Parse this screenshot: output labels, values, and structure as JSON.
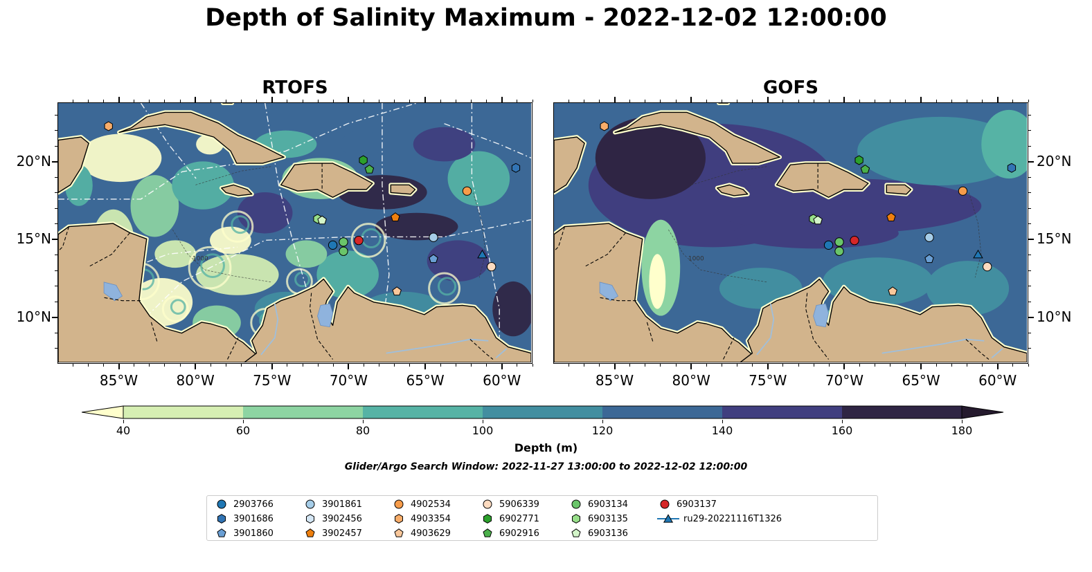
{
  "title": "Depth of Salinity Maximum - 2022-12-02 12:00:00",
  "panels": [
    {
      "name": "RTOFS",
      "style": "rtofs"
    },
    {
      "name": "GOFS",
      "style": "gofs"
    }
  ],
  "map": {
    "lon_range": [
      -89,
      -58
    ],
    "lat_range": [
      7,
      23.8
    ],
    "lon_ticks": [
      "85°W",
      "80°W",
      "75°W",
      "70°W",
      "65°W",
      "60°W"
    ],
    "lat_ticks": [
      "20°N",
      "15°N",
      "10°N"
    ],
    "contour_label": "1000",
    "land_color": "#d2b48c",
    "lake_color": "#8fb3dd"
  },
  "colorbar": {
    "label": "Depth (m)",
    "ticks": [
      "40",
      "60",
      "80",
      "100",
      "120",
      "140",
      "160",
      "180"
    ],
    "colors": [
      "#ffffcc",
      "#d6efb3",
      "#8dd4a2",
      "#56b3a5",
      "#428ea0",
      "#3c6896",
      "#403e7f",
      "#2f2544",
      "#251a2e"
    ]
  },
  "search_window": "Glider/Argo Search Window: 2022-11-27 13:00:00 to 2022-12-02 12:00:00",
  "legend": {
    "items": [
      {
        "label": "2903766",
        "marker": "circle",
        "color": "#1f77b4",
        "lon": null,
        "lat": null
      },
      {
        "label": "3901686",
        "marker": "hexagon",
        "color": "#3274b4",
        "lon": -59.0,
        "lat": 19.6
      },
      {
        "label": "3901860",
        "marker": "pentagon",
        "color": "#6a9fd4",
        "lon": -64.4,
        "lat": 13.7
      },
      {
        "label": "3901861",
        "marker": "circle",
        "color": "#a6cde8",
        "lon": -64.4,
        "lat": 15.1
      },
      {
        "label": "3902456",
        "marker": "hexagon",
        "color": "#d4e6f4",
        "lon": null,
        "lat": null
      },
      {
        "label": "3902457",
        "marker": "pentagon",
        "color": "#ee7f0e",
        "lon": -66.9,
        "lat": 16.4
      },
      {
        "label": "4902534",
        "marker": "circle",
        "color": "#f79c4a",
        "lon": -62.2,
        "lat": 18.1
      },
      {
        "label": "4903354",
        "marker": "hexagon",
        "color": "#f8ad6a",
        "lon": -85.7,
        "lat": 22.3
      },
      {
        "label": "4903629",
        "marker": "pentagon",
        "color": "#f9c79a",
        "lon": -66.8,
        "lat": 11.6
      },
      {
        "label": "5906339",
        "marker": "circle",
        "color": "#fddbc0",
        "lon": -60.6,
        "lat": 13.2
      },
      {
        "label": "6902771",
        "marker": "hexagon",
        "color": "#2ca02c",
        "lon": -69.0,
        "lat": 20.1
      },
      {
        "label": "6902916",
        "marker": "pentagon",
        "color": "#4bb04b",
        "lon": -68.6,
        "lat": 19.5
      },
      {
        "label": "6903134",
        "marker": "circle",
        "color": "#6ac56a",
        "lon": -70.3,
        "lat": 14.2
      },
      {
        "label": "6903135",
        "marker": "hexagon",
        "color": "#98df8a",
        "lon": -72.0,
        "lat": 16.3
      },
      {
        "label": "6903136",
        "marker": "pentagon",
        "color": "#d3f5c9",
        "lon": -71.7,
        "lat": 16.2
      },
      {
        "label": "6903137",
        "marker": "circle",
        "color": "#d62728",
        "lon": -69.3,
        "lat": 14.9
      },
      {
        "label": "ru29-20221116T1326",
        "marker": "triangle",
        "color": "#1f77b4",
        "lon": -61.2,
        "lat": 14.0
      }
    ],
    "extra_points": [
      {
        "label": "2903766",
        "lon": -71.0,
        "lat": 14.6
      },
      {
        "label": "6903134",
        "lon": -70.3,
        "lat": 14.8
      }
    ]
  }
}
